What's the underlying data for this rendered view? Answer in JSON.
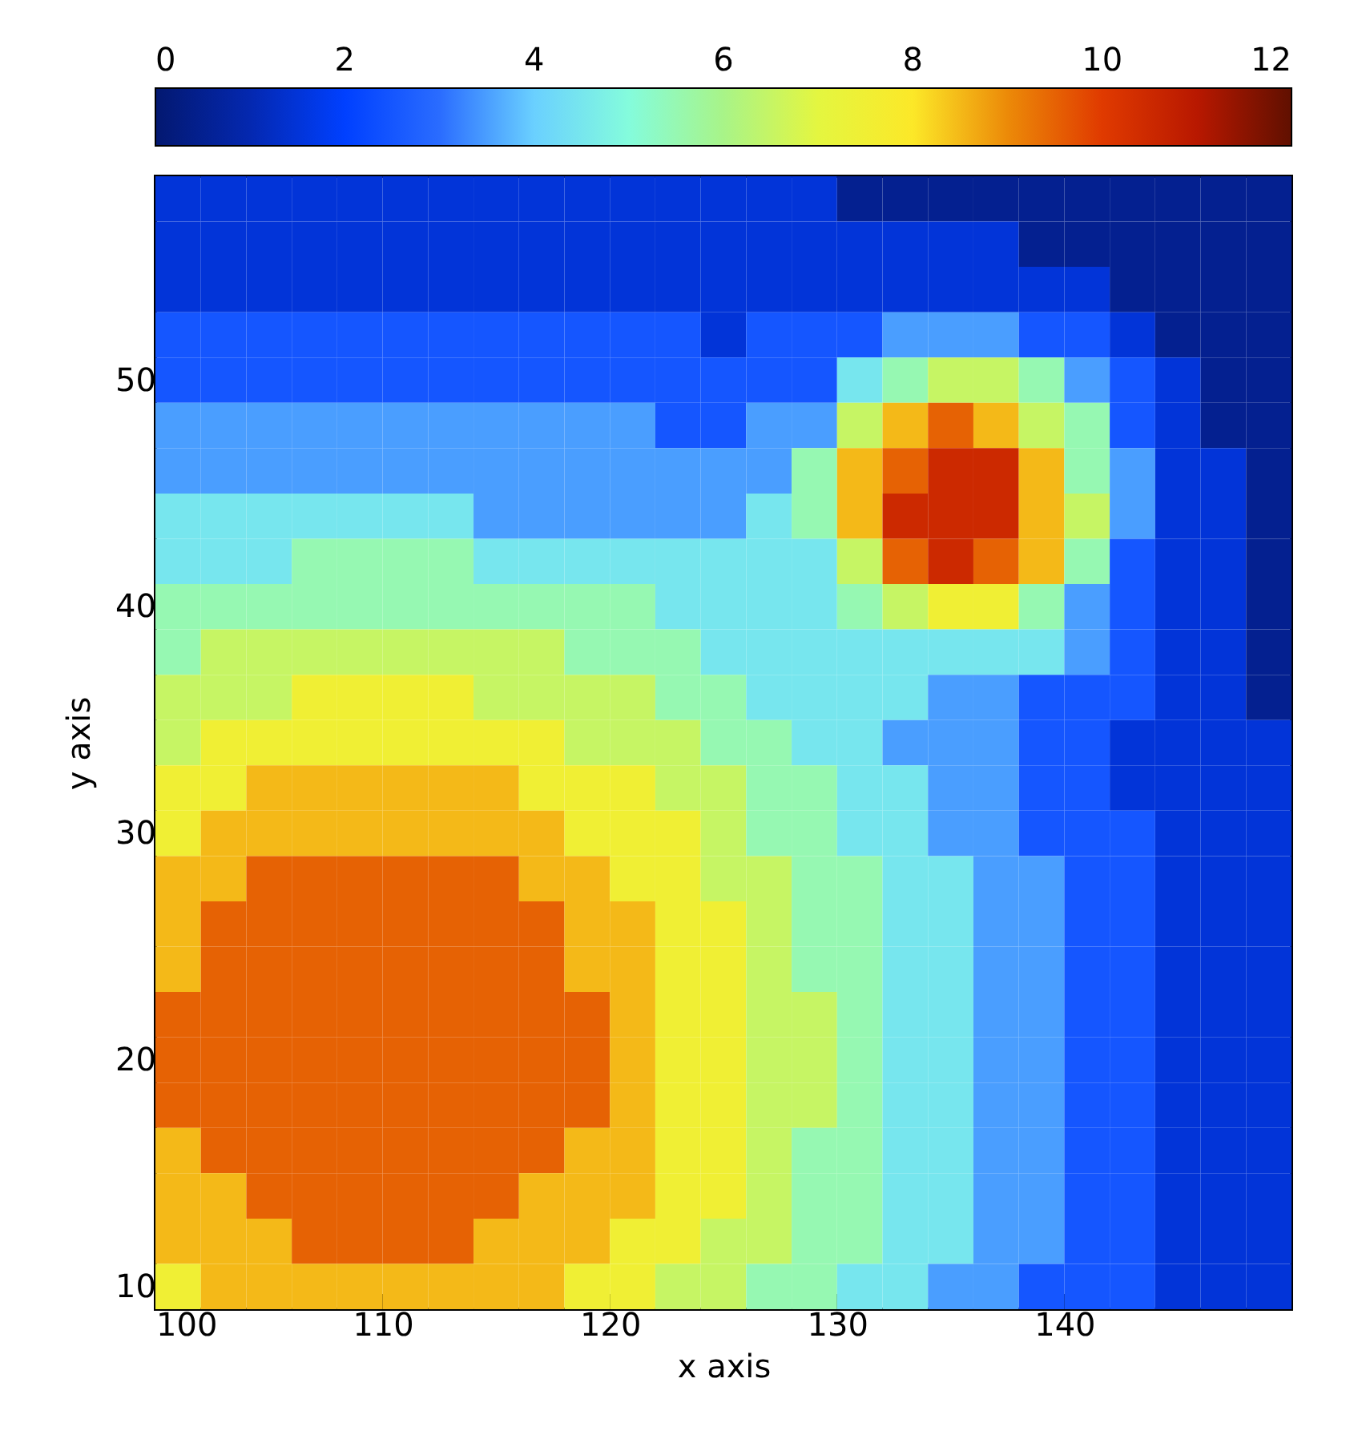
{
  "chart_data": {
    "type": "heatmap",
    "xlabel": "x axis",
    "ylabel": "y axis",
    "x": [
      101,
      103,
      105,
      107,
      109,
      111,
      113,
      115,
      117,
      119,
      121,
      123,
      125,
      127,
      129,
      131,
      133,
      135,
      137,
      139,
      141,
      143,
      145,
      147,
      149
    ],
    "xlim": [
      100,
      150
    ],
    "xticks": [
      100,
      110,
      120,
      130,
      140
    ],
    "ylim": [
      9,
      59
    ],
    "yticks": [
      10,
      20,
      30,
      40,
      50
    ],
    "clim": [
      0,
      12
    ],
    "cticks": [
      0,
      2,
      4,
      6,
      8,
      10,
      12
    ],
    "grid": false,
    "cells": [
      [
        1.5,
        1.5,
        1.5,
        1.5,
        1.5,
        1.5,
        1.5,
        1.5,
        1.5,
        1.5,
        1.5,
        1.5,
        1.5,
        1.5,
        1.5,
        0.5,
        0.5,
        0.5,
        0.5,
        0.5,
        0.5,
        0.5,
        0.5,
        0.5,
        0.5
      ],
      [
        1.5,
        1.5,
        1.5,
        1.5,
        1.5,
        1.5,
        1.5,
        1.5,
        1.5,
        1.5,
        1.5,
        1.5,
        1.5,
        1.5,
        1.5,
        1.5,
        1.5,
        1.5,
        1.5,
        0.5,
        0.5,
        0.5,
        0.5,
        0.5,
        0.5
      ],
      [
        1.5,
        1.5,
        1.5,
        1.5,
        1.5,
        1.5,
        1.5,
        1.5,
        1.5,
        1.5,
        1.5,
        1.5,
        1.5,
        1.5,
        1.5,
        1.5,
        1.5,
        1.5,
        1.5,
        1.5,
        1.5,
        0.5,
        0.5,
        0.5,
        0.5
      ],
      [
        2.5,
        2.5,
        2.5,
        2.5,
        2.5,
        2.5,
        2.5,
        2.5,
        2.5,
        2.5,
        2.5,
        2.5,
        1.5,
        2.5,
        2.5,
        2.5,
        3.5,
        3.5,
        3.5,
        2.5,
        2.5,
        1.5,
        0.5,
        0.5,
        0.5
      ],
      [
        2.5,
        2.5,
        2.5,
        2.5,
        2.5,
        2.5,
        2.5,
        2.5,
        2.5,
        2.5,
        2.5,
        2.5,
        2.5,
        2.5,
        2.5,
        4.5,
        5.5,
        6.5,
        6.5,
        5.5,
        3.5,
        2.5,
        1.5,
        0.5,
        0.5
      ],
      [
        3.5,
        3.5,
        3.5,
        3.5,
        3.5,
        3.5,
        3.5,
        3.5,
        3.5,
        3.5,
        3.5,
        2.5,
        2.5,
        3.5,
        3.5,
        6.5,
        8.5,
        9.5,
        8.5,
        6.5,
        5.5,
        2.5,
        1.5,
        0.5,
        0.5
      ],
      [
        3.5,
        3.5,
        3.5,
        3.5,
        3.5,
        3.5,
        3.5,
        3.5,
        3.5,
        3.5,
        3.5,
        3.5,
        3.5,
        3.5,
        5.5,
        8.5,
        9.5,
        10.5,
        10.5,
        8.5,
        5.5,
        3.5,
        1.5,
        1.5,
        0.5
      ],
      [
        4.5,
        4.5,
        4.5,
        4.5,
        4.5,
        4.5,
        4.5,
        3.5,
        3.5,
        3.5,
        3.5,
        3.5,
        3.5,
        4.5,
        5.5,
        8.5,
        10.5,
        10.5,
        10.5,
        8.5,
        6.5,
        3.5,
        1.5,
        1.5,
        0.5
      ],
      [
        4.5,
        4.5,
        4.5,
        5.5,
        5.5,
        5.5,
        5.5,
        4.5,
        4.5,
        4.5,
        4.5,
        4.5,
        4.5,
        4.5,
        4.5,
        6.5,
        9.5,
        10.5,
        9.5,
        8.5,
        5.5,
        2.5,
        1.5,
        1.5,
        0.5
      ],
      [
        5.5,
        5.5,
        5.5,
        5.5,
        5.5,
        5.5,
        5.5,
        5.5,
        5.5,
        5.5,
        5.5,
        4.5,
        4.5,
        4.5,
        4.5,
        5.5,
        6.5,
        7.5,
        7.5,
        5.5,
        3.5,
        2.5,
        1.5,
        1.5,
        0.5
      ],
      [
        5.5,
        6.5,
        6.5,
        6.5,
        6.5,
        6.5,
        6.5,
        6.5,
        6.5,
        5.5,
        5.5,
        5.5,
        4.5,
        4.5,
        4.5,
        4.5,
        4.5,
        4.5,
        4.5,
        4.5,
        3.5,
        2.5,
        1.5,
        1.5,
        0.5
      ],
      [
        6.5,
        6.5,
        6.5,
        7.5,
        7.5,
        7.5,
        7.5,
        6.5,
        6.5,
        6.5,
        6.5,
        5.5,
        5.5,
        4.5,
        4.5,
        4.5,
        4.5,
        3.5,
        3.5,
        2.5,
        2.5,
        2.5,
        1.5,
        1.5,
        0.5
      ],
      [
        6.5,
        7.5,
        7.5,
        7.5,
        7.5,
        7.5,
        7.5,
        7.5,
        7.5,
        6.5,
        6.5,
        6.5,
        5.5,
        5.5,
        4.5,
        4.5,
        3.5,
        3.5,
        3.5,
        2.5,
        2.5,
        1.5,
        1.5,
        1.5,
        1.5
      ],
      [
        7.5,
        7.5,
        8.5,
        8.5,
        8.5,
        8.5,
        8.5,
        8.5,
        7.5,
        7.5,
        7.5,
        6.5,
        6.5,
        5.5,
        5.5,
        4.5,
        4.5,
        3.5,
        3.5,
        2.5,
        2.5,
        1.5,
        1.5,
        1.5,
        1.5
      ],
      [
        7.5,
        8.5,
        8.5,
        8.5,
        8.5,
        8.5,
        8.5,
        8.5,
        8.5,
        7.5,
        7.5,
        7.5,
        6.5,
        5.5,
        5.5,
        4.5,
        4.5,
        3.5,
        3.5,
        2.5,
        2.5,
        2.5,
        1.5,
        1.5,
        1.5
      ],
      [
        8.5,
        8.5,
        9.5,
        9.5,
        9.5,
        9.5,
        9.5,
        9.5,
        8.5,
        8.5,
        7.5,
        7.5,
        6.5,
        6.5,
        5.5,
        5.5,
        4.5,
        4.5,
        3.5,
        3.5,
        2.5,
        2.5,
        1.5,
        1.5,
        1.5
      ],
      [
        8.5,
        9.5,
        9.5,
        9.5,
        9.5,
        9.5,
        9.5,
        9.5,
        9.5,
        8.5,
        8.5,
        7.5,
        7.5,
        6.5,
        5.5,
        5.5,
        4.5,
        4.5,
        3.5,
        3.5,
        2.5,
        2.5,
        1.5,
        1.5,
        1.5
      ],
      [
        8.5,
        9.5,
        9.5,
        9.5,
        9.5,
        9.5,
        9.5,
        9.5,
        9.5,
        8.5,
        8.5,
        7.5,
        7.5,
        6.5,
        5.5,
        5.5,
        4.5,
        4.5,
        3.5,
        3.5,
        2.5,
        2.5,
        1.5,
        1.5,
        1.5
      ],
      [
        9.5,
        9.5,
        9.5,
        9.5,
        9.5,
        9.5,
        9.5,
        9.5,
        9.5,
        9.5,
        8.5,
        7.5,
        7.5,
        6.5,
        6.5,
        5.5,
        4.5,
        4.5,
        3.5,
        3.5,
        2.5,
        2.5,
        1.5,
        1.5,
        1.5
      ],
      [
        9.5,
        9.5,
        9.5,
        9.5,
        9.5,
        9.5,
        9.5,
        9.5,
        9.5,
        9.5,
        8.5,
        7.5,
        7.5,
        6.5,
        6.5,
        5.5,
        4.5,
        4.5,
        3.5,
        3.5,
        2.5,
        2.5,
        1.5,
        1.5,
        1.5
      ],
      [
        9.5,
        9.5,
        9.5,
        9.5,
        9.5,
        9.5,
        9.5,
        9.5,
        9.5,
        9.5,
        8.5,
        7.5,
        7.5,
        6.5,
        6.5,
        5.5,
        4.5,
        4.5,
        3.5,
        3.5,
        2.5,
        2.5,
        1.5,
        1.5,
        1.5
      ],
      [
        8.5,
        9.5,
        9.5,
        9.5,
        9.5,
        9.5,
        9.5,
        9.5,
        9.5,
        8.5,
        8.5,
        7.5,
        7.5,
        6.5,
        5.5,
        5.5,
        4.5,
        4.5,
        3.5,
        3.5,
        2.5,
        2.5,
        1.5,
        1.5,
        1.5
      ],
      [
        8.5,
        8.5,
        9.5,
        9.5,
        9.5,
        9.5,
        9.5,
        9.5,
        8.5,
        8.5,
        8.5,
        7.5,
        7.5,
        6.5,
        5.5,
        5.5,
        4.5,
        4.5,
        3.5,
        3.5,
        2.5,
        2.5,
        1.5,
        1.5,
        1.5
      ],
      [
        8.5,
        8.5,
        8.5,
        9.5,
        9.5,
        9.5,
        9.5,
        8.5,
        8.5,
        8.5,
        7.5,
        7.5,
        6.5,
        6.5,
        5.5,
        5.5,
        4.5,
        4.5,
        3.5,
        3.5,
        2.5,
        2.5,
        1.5,
        1.5,
        1.5
      ],
      [
        7.5,
        8.5,
        8.5,
        8.5,
        8.5,
        8.5,
        8.5,
        8.5,
        8.5,
        7.5,
        7.5,
        6.5,
        6.5,
        5.5,
        5.5,
        4.5,
        4.5,
        3.5,
        3.5,
        2.5,
        2.5,
        2.5,
        1.5,
        1.5,
        1.5
      ]
    ]
  }
}
